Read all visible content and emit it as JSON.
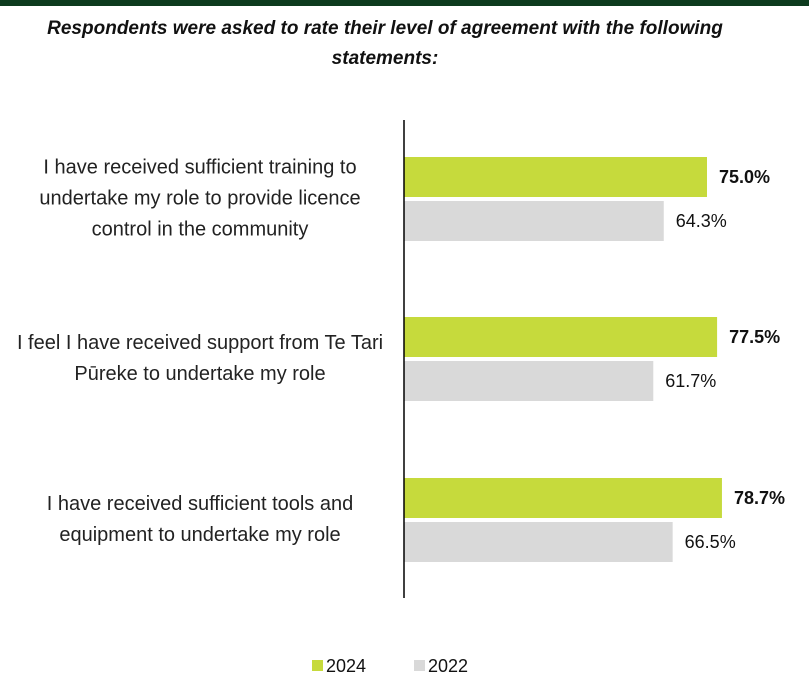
{
  "chart_data": {
    "type": "bar",
    "orientation": "horizontal",
    "title": "Respondents were asked to rate their level of agreement with the following statements:",
    "categories": [
      "I have received sufficient training to undertake my role to provide licence control in the community",
      "I feel I have received support from Te Tari Pūreke to undertake my role",
      "I have received sufficient tools and equipment to undertake my role"
    ],
    "series": [
      {
        "name": "2024",
        "color": "#c6da3c",
        "values": [
          75.0,
          77.5,
          78.7
        ],
        "value_labels": [
          "75.0%",
          "77.5%",
          "78.7%"
        ]
      },
      {
        "name": "2022",
        "color": "#d9d9d9",
        "values": [
          64.3,
          61.7,
          66.5
        ],
        "value_labels": [
          "64.3%",
          "61.7%",
          "66.5%"
        ]
      }
    ],
    "xlim": [
      0,
      100
    ],
    "legend": "bottom"
  }
}
